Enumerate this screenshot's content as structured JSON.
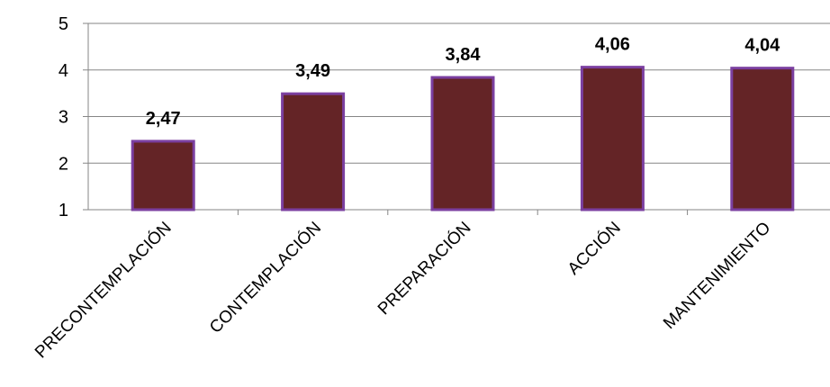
{
  "chart_data": {
    "type": "bar",
    "categories": [
      "PRECONTEMPLACIÓN",
      "CONTEMPLACIÓN",
      "PREPARACIÓN",
      "ACCIÓN",
      "MANTENIMIENTO"
    ],
    "values": [
      2.47,
      3.49,
      3.84,
      4.06,
      4.04
    ],
    "data_labels": [
      "2,47",
      "3,49",
      "3,84",
      "4,06",
      "4,04"
    ],
    "yticks": [
      "1",
      "2",
      "3",
      "4",
      "5"
    ],
    "ylim": [
      1,
      5
    ],
    "grid": true,
    "legend": "none",
    "title": "",
    "xlabel": "",
    "ylabel": "",
    "colors": {
      "bar_fill": "#642426",
      "bar_border": "#7B3FA0",
      "grid": "#868686",
      "axis": "#868686"
    }
  }
}
